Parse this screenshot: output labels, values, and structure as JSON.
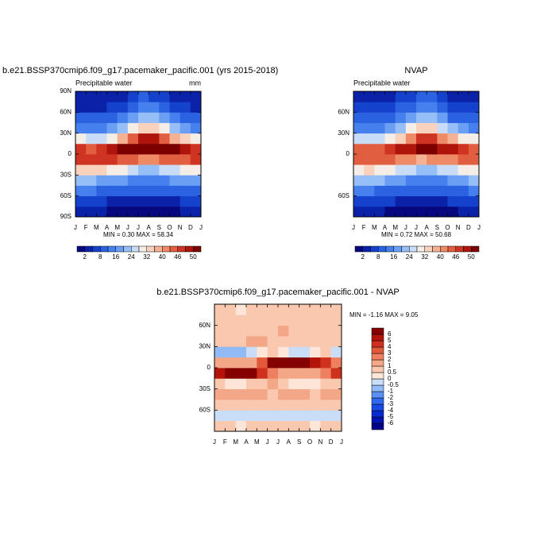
{
  "chart_data": [
    {
      "type": "contour",
      "title": "b.e21.BSSP370cmip6.f09_g17.pacemaker_pacific.001 (yrs 2015-2018)",
      "subtitle": "Precipitable water",
      "units": "mm",
      "stats": "MIN =  0.30 MAX =  58.34",
      "xtick_labels": [
        "J",
        "F",
        "M",
        "A",
        "M",
        "J",
        "J",
        "A",
        "S",
        "O",
        "N",
        "D",
        "J"
      ],
      "ylim": [
        -90,
        90
      ],
      "yticks": [
        {
          "value": 90,
          "label": "90N"
        },
        {
          "value": 60,
          "label": "60N"
        },
        {
          "value": 30,
          "label": "30N"
        },
        {
          "value": 0,
          "label": "0"
        },
        {
          "value": -30,
          "label": "30S"
        },
        {
          "value": -60,
          "label": "60S"
        },
        {
          "value": -90,
          "label": "90S"
        }
      ],
      "lat_edges": [
        -90,
        -75,
        -60,
        -45,
        -30,
        -15,
        0,
        15,
        30,
        45,
        60,
        75,
        90
      ],
      "values": [
        [
          2,
          2,
          2,
          1.5,
          1,
          1,
          1,
          1,
          1,
          1.5,
          2,
          2
        ],
        [
          6,
          6,
          5,
          4,
          4,
          3,
          3,
          3,
          3,
          4,
          5,
          6
        ],
        [
          12,
          12,
          11,
          10,
          9,
          8,
          8,
          8,
          8,
          9,
          10,
          11
        ],
        [
          20,
          20,
          19,
          18,
          16,
          15,
          14,
          14,
          15,
          16,
          18,
          19
        ],
        [
          32,
          33,
          32,
          30,
          28,
          25,
          23,
          23,
          24,
          27,
          29,
          31
        ],
        [
          46,
          47,
          47,
          46,
          45,
          43,
          42,
          42,
          43,
          44,
          45,
          46
        ],
        [
          46,
          45,
          46,
          48,
          50,
          51,
          52,
          52,
          51,
          50,
          48,
          47
        ],
        [
          28,
          26,
          26,
          30,
          36,
          44,
          48,
          48,
          44,
          38,
          32,
          29
        ],
        [
          14,
          13,
          14,
          17,
          22,
          30,
          35,
          34,
          28,
          22,
          17,
          15
        ],
        [
          8,
          8,
          8,
          10,
          13,
          18,
          22,
          21,
          17,
          12,
          10,
          8
        ],
        [
          4,
          4,
          4,
          5,
          7,
          10,
          13,
          12,
          9,
          6,
          5,
          4
        ],
        [
          2,
          2,
          2,
          3,
          4,
          6,
          8,
          7,
          5,
          3,
          2,
          2
        ]
      ],
      "levels": [
        2,
        8,
        16,
        24,
        32,
        40,
        46,
        50
      ],
      "colors": [
        "#07077e",
        "#0a22a8",
        "#1442cc",
        "#2a62e2",
        "#4580ee",
        "#6a9ff4",
        "#97bff7",
        "#c9dcf7",
        "#f4eee6",
        "#f8d2bd",
        "#f4b193",
        "#ee8a66",
        "#e25e40",
        "#cf3422",
        "#b0150c",
        "#7c0000"
      ]
    },
    {
      "type": "contour",
      "title": "NVAP",
      "subtitle": "Precipitable water",
      "stats": "MIN =  0.72 MAX =  50.68",
      "xtick_labels": [
        "J",
        "F",
        "M",
        "A",
        "M",
        "J",
        "J",
        "A",
        "S",
        "O",
        "N",
        "D",
        "J"
      ],
      "ylim": [
        -90,
        90
      ],
      "yticks": [
        {
          "value": 60,
          "label": "60N"
        },
        {
          "value": 30,
          "label": "30N"
        },
        {
          "value": 0,
          "label": "0"
        },
        {
          "value": -60,
          "label": "60S"
        }
      ],
      "lat_edges": [
        -90,
        -75,
        -60,
        -45,
        -30,
        -15,
        0,
        15,
        30,
        45,
        60,
        75,
        90
      ],
      "values": [
        [
          2,
          2,
          2,
          1,
          1,
          1,
          1,
          1,
          1,
          1,
          2,
          2
        ],
        [
          6,
          6,
          5,
          5,
          4,
          4,
          4,
          4,
          4,
          5,
          5,
          6
        ],
        [
          12,
          12,
          11,
          10,
          9,
          9,
          8,
          8,
          9,
          10,
          11,
          12
        ],
        [
          20,
          21,
          20,
          18,
          16,
          15,
          14,
          14,
          15,
          17,
          18,
          20
        ],
        [
          31,
          32,
          31,
          29,
          27,
          24,
          22,
          22,
          24,
          26,
          28,
          30
        ],
        [
          44,
          45,
          45,
          44,
          42,
          40,
          39,
          40,
          41,
          42,
          43,
          44
        ],
        [
          44,
          43,
          44,
          46,
          48,
          49,
          50,
          50,
          49,
          48,
          46,
          45
        ],
        [
          27,
          25,
          25,
          29,
          34,
          42,
          46,
          46,
          42,
          36,
          31,
          28
        ],
        [
          14,
          13,
          13,
          16,
          21,
          28,
          33,
          32,
          27,
          21,
          16,
          14
        ],
        [
          8,
          8,
          8,
          9,
          12,
          17,
          21,
          20,
          16,
          11,
          9,
          8
        ],
        [
          5,
          5,
          5,
          6,
          8,
          11,
          13,
          12,
          9,
          7,
          6,
          5
        ],
        [
          3,
          3,
          3,
          4,
          5,
          7,
          9,
          8,
          6,
          4,
          3,
          3
        ]
      ],
      "levels": [
        2,
        8,
        16,
        24,
        32,
        40,
        46,
        50
      ],
      "colors": [
        "#07077e",
        "#0a22a8",
        "#1442cc",
        "#2a62e2",
        "#4580ee",
        "#6a9ff4",
        "#97bff7",
        "#c9dcf7",
        "#f4eee6",
        "#f8d2bd",
        "#f4b193",
        "#ee8a66",
        "#e25e40",
        "#cf3422",
        "#b0150c",
        "#7c0000"
      ]
    },
    {
      "type": "contour",
      "title": "b.e21.BSSP370cmip6.f09_g17.pacemaker_pacific.001 - NVAP",
      "stats": "MIN =  -1.16 MAX =   9.05",
      "xtick_labels": [
        "J",
        "F",
        "M",
        "A",
        "M",
        "J",
        "J",
        "A",
        "S",
        "O",
        "N",
        "D",
        "J"
      ],
      "ylim": [
        -90,
        90
      ],
      "yticks": [
        {
          "value": 60,
          "label": "60N"
        },
        {
          "value": 30,
          "label": "30N"
        },
        {
          "value": 0,
          "label": "0"
        },
        {
          "value": -30,
          "label": "30S"
        },
        {
          "value": -60,
          "label": "60S"
        }
      ],
      "lat_edges": [
        -90,
        -75,
        -60,
        -45,
        -30,
        -15,
        0,
        15,
        30,
        45,
        60,
        75,
        90
      ],
      "values": [
        [
          0.8,
          0.6,
          0.4,
          0.5,
          0.6,
          0.8,
          0.5,
          0.6,
          0.7,
          0.4,
          0.5,
          0.6
        ],
        [
          -0.3,
          -0.2,
          -0.4,
          -0.2,
          -0.3,
          -0.4,
          -0.3,
          -0.2,
          -0.4,
          -0.3,
          -0.2,
          -0.3
        ],
        [
          0.7,
          0.8,
          0.9,
          0.6,
          0.7,
          0.8,
          0.9,
          0.7,
          0.6,
          0.8,
          0.9,
          0.7
        ],
        [
          1.2,
          1.4,
          1.6,
          1.3,
          1.1,
          0.9,
          1.0,
          1.2,
          1.1,
          0.9,
          1.0,
          1.1
        ],
        [
          0.6,
          0.4,
          0.2,
          0.5,
          0.8,
          1.0,
          0.7,
          0.3,
          0.2,
          0.4,
          0.6,
          0.7
        ],
        [
          5.5,
          6.2,
          6.5,
          6.0,
          4.5,
          2.5,
          1.5,
          1.2,
          1.0,
          1.5,
          2.5,
          4.0
        ],
        [
          1.5,
          1.2,
          1.0,
          1.5,
          3.0,
          6.5,
          7.5,
          8.0,
          7.0,
          5.5,
          4.0,
          2.5
        ],
        [
          -0.8,
          -0.9,
          -0.6,
          -0.4,
          0.2,
          0.8,
          0.4,
          -0.2,
          -0.3,
          0.2,
          0.5,
          -0.2
        ],
        [
          0.8,
          0.7,
          0.9,
          1.1,
          1.3,
          0.9,
          0.6,
          0.5,
          0.7,
          0.8,
          0.9,
          0.8
        ],
        [
          0.7,
          0.8,
          0.6,
          0.7,
          0.9,
          0.8,
          1.2,
          0.9,
          0.7,
          0.6,
          0.8,
          0.7
        ],
        [
          0.6,
          0.5,
          0.7,
          0.8,
          0.6,
          0.7,
          0.6,
          0.8,
          0.9,
          0.6,
          0.5,
          0.6
        ],
        [
          0.6,
          0.5,
          0.4,
          0.5,
          0.6,
          0.7,
          0.6,
          0.5,
          0.5,
          0.6,
          0.5,
          0.6
        ]
      ],
      "levels": [
        -6,
        -5,
        -4,
        -3,
        -2,
        -1,
        -0.5,
        0,
        0.5,
        1,
        2,
        3,
        4,
        5,
        6
      ],
      "colors": [
        "#00008b",
        "#0012b0",
        "#0a2ad0",
        "#1a4ae6",
        "#3068ef",
        "#5890f3",
        "#92baf6",
        "#c9ddf8",
        "#fde6d8",
        "#f9c8ae",
        "#f4a786",
        "#ee805f",
        "#e2583a",
        "#d0301e",
        "#b31308",
        "#850000"
      ]
    }
  ]
}
